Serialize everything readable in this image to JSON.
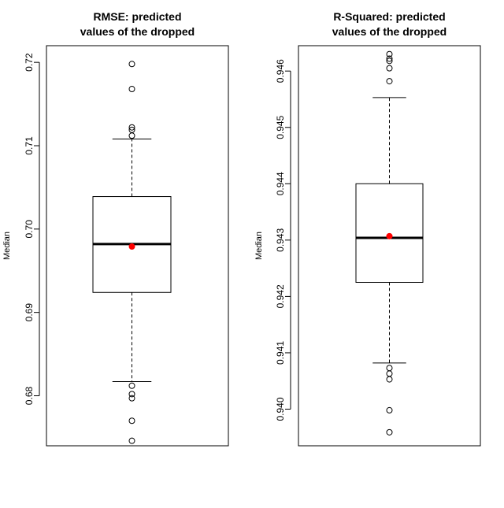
{
  "chart_data": [
    {
      "type": "boxplot",
      "title_lines": [
        "RMSE: predicted",
        "values of the dropped"
      ],
      "ylabel": "Median",
      "xlabel": "",
      "ylim": [
        0.674,
        0.722
      ],
      "yticks": [
        0.68,
        0.69,
        0.7,
        0.71,
        0.72
      ],
      "ytick_labels": [
        "0.68",
        "0.69",
        "0.70",
        "0.71",
        "0.72"
      ],
      "box": {
        "whisker_low": 0.6817,
        "q1": 0.6924,
        "median": 0.6982,
        "q3": 0.7039,
        "whisker_high": 0.7108
      },
      "mean": 0.6979,
      "outliers": [
        0.7198,
        0.7168,
        0.7122,
        0.7119,
        0.7112,
        0.6812,
        0.6802,
        0.6797,
        0.677,
        0.6746
      ],
      "colors": {
        "box": "#000000",
        "mean": "#ff0000"
      }
    },
    {
      "type": "boxplot",
      "title_lines": [
        "R-Squared: predicted",
        "values of the dropped"
      ],
      "ylabel": "Median",
      "xlabel": "",
      "ylim": [
        0.93935,
        0.94645
      ],
      "yticks": [
        0.94,
        0.941,
        0.942,
        0.943,
        0.944,
        0.945,
        0.946
      ],
      "ytick_labels": [
        "0.940",
        "0.941",
        "0.942",
        "0.943",
        "0.944",
        "0.945",
        "0.946"
      ],
      "box": {
        "whisker_low": 0.94082,
        "q1": 0.94225,
        "median": 0.94304,
        "q3": 0.944,
        "whisker_high": 0.94553
      },
      "mean": 0.94307,
      "outliers": [
        0.9463,
        0.94622,
        0.94618,
        0.94605,
        0.94582,
        0.94073,
        0.94063,
        0.94053,
        0.93998,
        0.93959
      ],
      "colors": {
        "box": "#000000",
        "mean": "#ff0000"
      }
    }
  ]
}
